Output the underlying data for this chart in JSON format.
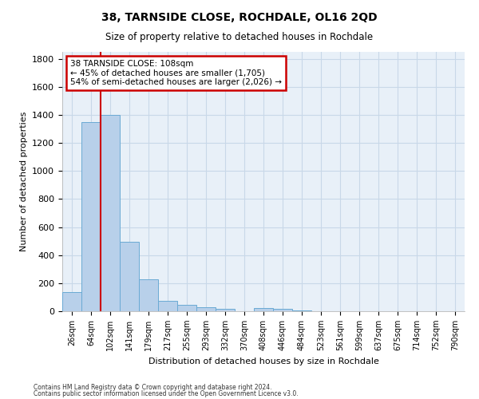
{
  "title": "38, TARNSIDE CLOSE, ROCHDALE, OL16 2QD",
  "subtitle": "Size of property relative to detached houses in Rochdale",
  "xlabel": "Distribution of detached houses by size in Rochdale",
  "ylabel": "Number of detached properties",
  "bar_labels": [
    "26sqm",
    "64sqm",
    "102sqm",
    "141sqm",
    "179sqm",
    "217sqm",
    "255sqm",
    "293sqm",
    "332sqm",
    "370sqm",
    "408sqm",
    "446sqm",
    "484sqm",
    "523sqm",
    "561sqm",
    "599sqm",
    "637sqm",
    "675sqm",
    "714sqm",
    "752sqm",
    "790sqm"
  ],
  "bar_values": [
    135,
    1350,
    1400,
    495,
    225,
    75,
    45,
    27,
    15,
    0,
    20,
    15,
    5,
    0,
    0,
    0,
    0,
    0,
    0,
    0,
    0
  ],
  "bar_color": "#b8d0ea",
  "bar_edge_color": "#6aaad4",
  "vline_x": 1.5,
  "vline_color": "#cc0000",
  "annotation_text": "38 TARNSIDE CLOSE: 108sqm\n← 45% of detached houses are smaller (1,705)\n54% of semi-detached houses are larger (2,026) →",
  "annotation_box_color": "#ffffff",
  "annotation_box_edge_color": "#cc0000",
  "ylim": [
    0,
    1850
  ],
  "yticks": [
    0,
    200,
    400,
    600,
    800,
    1000,
    1200,
    1400,
    1600,
    1800
  ],
  "grid_color": "#c8d8e8",
  "bg_color": "#e8f0f8",
  "footer_line1": "Contains HM Land Registry data © Crown copyright and database right 2024.",
  "footer_line2": "Contains public sector information licensed under the Open Government Licence v3.0."
}
